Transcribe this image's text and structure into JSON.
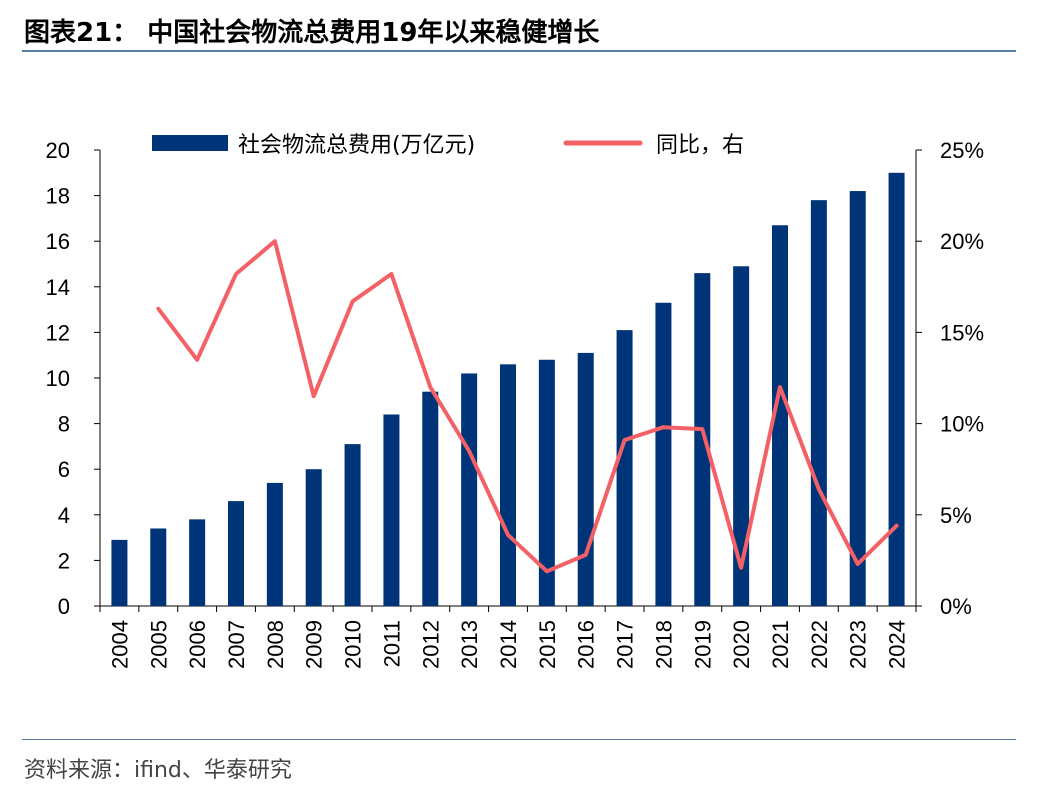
{
  "header": {
    "title": "图表21：  中国社会物流总费用19年以来稳健增长"
  },
  "footer": {
    "source": "资料来源：ifind、华泰研究"
  },
  "chart_data": {
    "type": "bar+line",
    "categories": [
      "2004",
      "2005",
      "2006",
      "2007",
      "2008",
      "2009",
      "2010",
      "2011",
      "2012",
      "2013",
      "2014",
      "2015",
      "2016",
      "2017",
      "2018",
      "2019",
      "2020",
      "2021",
      "2022",
      "2023",
      "2024"
    ],
    "series": [
      {
        "name": "社会物流总费用(万亿元)",
        "type": "bar",
        "axis": "left",
        "color": "#003478",
        "values": [
          2.9,
          3.4,
          3.8,
          4.6,
          5.4,
          6.0,
          7.1,
          8.4,
          9.4,
          10.2,
          10.6,
          10.8,
          11.1,
          12.1,
          13.3,
          14.6,
          14.9,
          16.7,
          17.8,
          18.2,
          19.0
        ]
      },
      {
        "name": "同比，右",
        "type": "line",
        "axis": "right",
        "color": "#f36066",
        "values": [
          null,
          16.3,
          13.5,
          18.2,
          20.0,
          11.5,
          16.7,
          18.2,
          12.0,
          8.5,
          3.9,
          1.9,
          2.8,
          9.1,
          9.8,
          9.7,
          2.1,
          12.0,
          6.4,
          2.3,
          4.4
        ]
      }
    ],
    "y_left": {
      "min": 0,
      "max": 20,
      "ticks": [
        "0",
        "2",
        "4",
        "6",
        "8",
        "10",
        "12",
        "14",
        "16",
        "18",
        "20"
      ]
    },
    "y_right": {
      "min": 0,
      "max": 25,
      "ticks": [
        "0%",
        "5%",
        "10%",
        "15%",
        "20%",
        "25%"
      ]
    },
    "legend": "top"
  }
}
